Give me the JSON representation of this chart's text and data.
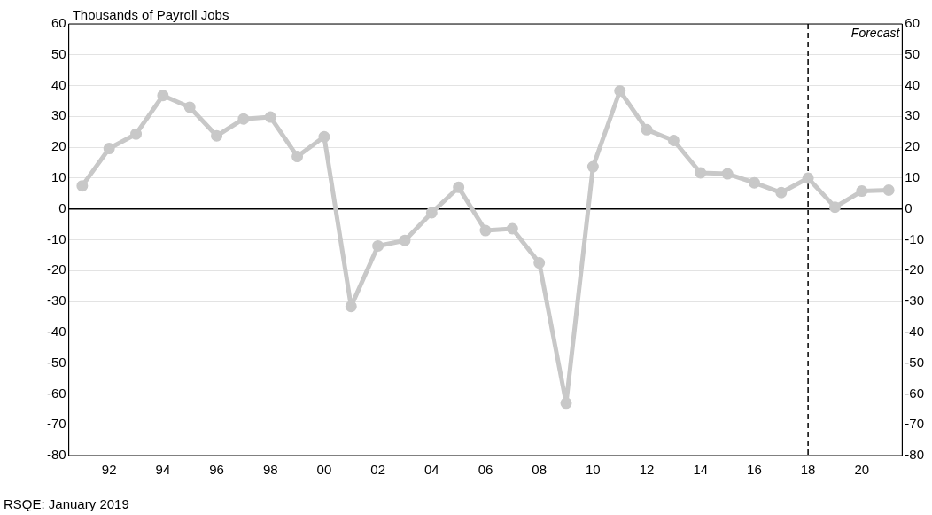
{
  "chart_data": {
    "type": "line",
    "title": "Thousands of Payroll Jobs",
    "annotations": [
      "RSQE: January 2019"
    ],
    "x": [
      1991,
      1992,
      1993,
      1994,
      1995,
      1996,
      1997,
      1998,
      1999,
      2000,
      2001,
      2002,
      2003,
      2004,
      2005,
      2006,
      2007,
      2008,
      2009,
      2010,
      2011,
      2012,
      2013,
      2014,
      2015,
      2016,
      2017,
      2018,
      2019,
      2020,
      2021
    ],
    "series": [
      {
        "color": "#c8c8c8",
        "values": [
          7.5,
          19.6,
          24.3,
          36.8,
          33,
          23.7,
          29.2,
          29.8,
          17,
          23.4,
          -31.6,
          -12,
          -10.2,
          -1.2,
          7,
          -7,
          -6.4,
          -17.5,
          -63,
          13.7,
          38.3,
          25.7,
          22.2,
          11.7,
          11.4,
          8.5,
          5.3,
          10,
          0.6,
          5.8,
          6.1
        ]
      }
    ],
    "xlim": [
      1990.5,
      2021.5
    ],
    "xticks": [
      {
        "value": 1992,
        "label": "92"
      },
      {
        "value": 1994,
        "label": "94"
      },
      {
        "value": 1996,
        "label": "96"
      },
      {
        "value": 1998,
        "label": "98"
      },
      {
        "value": 2000,
        "label": "00"
      },
      {
        "value": 2002,
        "label": "02"
      },
      {
        "value": 2004,
        "label": "04"
      },
      {
        "value": 2006,
        "label": "06"
      },
      {
        "value": 2008,
        "label": "08"
      },
      {
        "value": 2010,
        "label": "10"
      },
      {
        "value": 2012,
        "label": "12"
      },
      {
        "value": 2014,
        "label": "14"
      },
      {
        "value": 2016,
        "label": "16"
      },
      {
        "value": 2018,
        "label": "18"
      },
      {
        "value": 2020,
        "label": "20"
      }
    ],
    "ylim": [
      -80,
      60
    ],
    "yticks": [
      -80,
      -70,
      -60,
      -50,
      -40,
      -30,
      -20,
      -10,
      0,
      10,
      20,
      30,
      40,
      50,
      60
    ],
    "y2lim": [
      -80,
      60
    ],
    "y2ticks": [
      -80,
      -70,
      -60,
      -50,
      -40,
      -30,
      -20,
      -10,
      0,
      10,
      20,
      30,
      40,
      50,
      60
    ],
    "ref_lines": [
      {
        "axis": "y",
        "value": 0,
        "color": "#000000",
        "line_style": "solid"
      },
      {
        "axis": "x",
        "value": 2018,
        "label": "Forecast",
        "color": "#000000",
        "line_style": "dashed"
      }
    ],
    "grid": "y",
    "legend": false,
    "marker": "circle",
    "line_style": "solid"
  }
}
